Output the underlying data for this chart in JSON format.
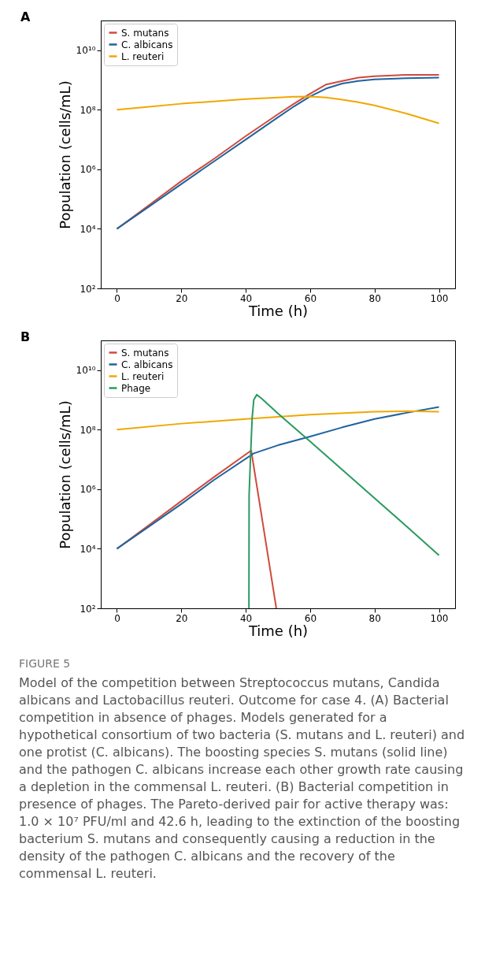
{
  "chart_data": [
    {
      "type": "line",
      "title": "A",
      "xlabel": "Time (h)",
      "ylabel": "Population (cells/mL)",
      "log": "y",
      "xlim": [
        -5,
        105
      ],
      "xticks": [
        0,
        20,
        40,
        60,
        80,
        100
      ],
      "ylim": [
        100,
        100000000000.0
      ],
      "yticks": [
        {
          "value": 100,
          "label": "10²"
        },
        {
          "value": 10000,
          "label": "10⁴"
        },
        {
          "value": 1000000,
          "label": "10⁶"
        },
        {
          "value": 100000000,
          "label": "10⁸"
        },
        {
          "value": 10000000000,
          "label": "10¹⁰"
        }
      ],
      "grid": false,
      "legend": "top left",
      "x": [
        0,
        10,
        20,
        30,
        40,
        50,
        55,
        60,
        65,
        70,
        75,
        80,
        90,
        100
      ],
      "series": [
        {
          "name": "S. mutans",
          "color": "#d04a3c",
          "values": [
            10000.0,
            63000.0,
            400000.0,
            2200000.0,
            13000000.0,
            71000000.0,
            160000000.0,
            350000000.0,
            710000000.0,
            930000000.0,
            1200000000.0,
            1350000000.0,
            1500000000.0,
            1500000000.0
          ]
        },
        {
          "name": "C. albicans",
          "color": "#1f63a0",
          "values": [
            10000.0,
            56000.0,
            320000.0,
            1800000.0,
            10000000.0,
            56000000.0,
            130000000.0,
            280000000.0,
            520000000.0,
            760000000.0,
            930000000.0,
            1050000000.0,
            1150000000.0,
            1200000000.0
          ]
        },
        {
          "name": "L. reuteri",
          "color": "#f0a800",
          "values": [
            100000000.0,
            126000000.0,
            160000000.0,
            190000000.0,
            230000000.0,
            260000000.0,
            275000000.0,
            280000000.0,
            260000000.0,
            220000000.0,
            180000000.0,
            140000000.0,
            74000000.0,
            35000000.0
          ]
        }
      ]
    },
    {
      "type": "line",
      "title": "B",
      "xlabel": "Time (h)",
      "ylabel": "Population (cells/mL)",
      "log": "y",
      "xlim": [
        -5,
        105
      ],
      "xticks": [
        0,
        20,
        40,
        60,
        80,
        100
      ],
      "ylim": [
        100,
        100000000000.0
      ],
      "yticks": [
        {
          "value": 100,
          "label": "10²"
        },
        {
          "value": 10000,
          "label": "10⁴"
        },
        {
          "value": 1000000,
          "label": "10⁶"
        },
        {
          "value": 100000000,
          "label": "10⁸"
        },
        {
          "value": 10000000000,
          "label": "10¹⁰"
        }
      ],
      "grid": false,
      "legend": "top left",
      "series": [
        {
          "name": "S. mutans",
          "color": "#d04a3c",
          "x": [
            0,
            10,
            20,
            30,
            41.7,
            45,
            49.5
          ],
          "values": [
            10000.0,
            63000.0,
            400000.0,
            2500000.0,
            20000000.0,
            115000.0,
            100.0
          ]
        },
        {
          "name": "C. albicans",
          "color": "#1f63a0",
          "x": [
            0,
            10,
            20,
            30,
            42.5,
            50,
            60,
            70,
            80,
            90,
            100
          ],
          "values": [
            10000.0,
            56000.0,
            320000.0,
            2000000.0,
            16000000.0,
            30000000.0,
            59000000.0,
            120000000.0,
            230000000.0,
            370000000.0,
            580000000.0
          ]
        },
        {
          "name": "L. reuteri",
          "color": "#f0a800",
          "x": [
            0,
            20,
            40,
            60,
            80,
            90,
            100
          ],
          "values": [
            100000000.0,
            160000000.0,
            230000000.0,
            320000000.0,
            400000000.0,
            420000000.0,
            400000000.0
          ]
        },
        {
          "name": "Phage",
          "color": "#2a9a60",
          "x": [
            41.0,
            41.05,
            41.5,
            42.0,
            42.5,
            43.4,
            45,
            50,
            60,
            70,
            80,
            90,
            100
          ],
          "values": [
            100.0,
            630000.0,
            13000000.0,
            250000000.0,
            1000000000.0,
            1500000000.0,
            1100000000.0,
            350000000.0,
            40000000.0,
            4500000.0,
            500000.0,
            56000.0,
            6000.0
          ]
        }
      ],
      "annotations": [
        "FIGURE 5",
        "Model of the competition between Streptococcus mutans, Candida albicans and Lactobacillus reuteri. Outcome for case 4. (A) Bacterial competition in absence of phages. Models generated for a hypothetical consortium of two bacteria (S. mutans and L. reuteri) and one protist (C. albicans). The boosting species S. mutans (solid line) and the pathogen C. albicans increase each other growth rate causing a depletion in the commensal L. reuteri. (B) Bacterial competition in presence of phages. The Pareto-derived pair for active therapy was: 1.0 × 10⁷ PFU/ml and 42.6 h, leading to the extinction of the boosting bacterium S. mutans and consequently causing a reduction in the density of the pathogen C. albicans and the recovery of the commensal L. reuteri."
      ]
    }
  ]
}
